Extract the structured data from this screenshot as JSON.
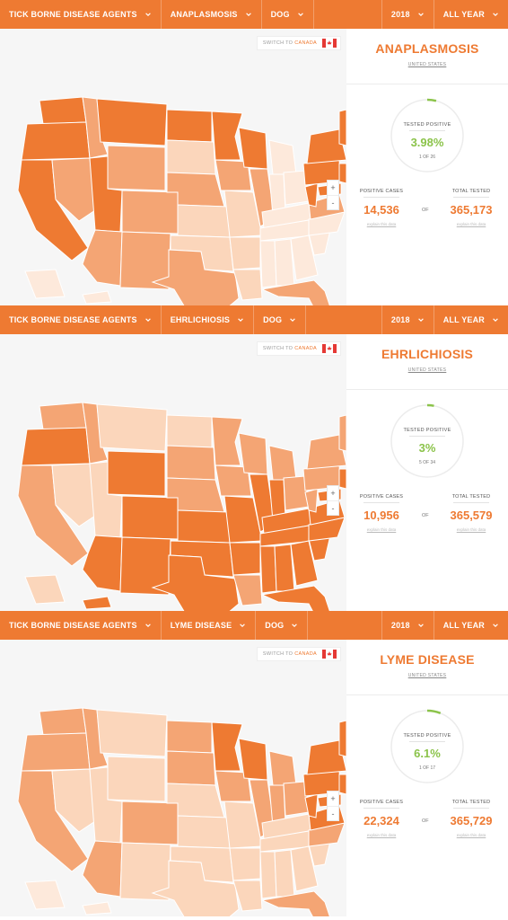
{
  "panels": [
    {
      "nav": {
        "category": "TICK BORNE DISEASE AGENTS",
        "disease": "ANAPLASMOSIS",
        "species": "DOG",
        "year": "2018",
        "period": "ALL YEAR"
      },
      "switch": {
        "prefix": "SWITCH TO",
        "country": "CANADA"
      },
      "zoom": {
        "in": "+",
        "out": "-"
      },
      "stats": {
        "title": "ANAPLASMOSIS",
        "country": "UNITED STATES",
        "tested_positive_label": "TESTED POSITIVE",
        "percent": "3.98%",
        "rank": "1 OF 26",
        "positive_cases_label": "POSITIVE CASES",
        "positive_cases": "14,536",
        "of_label": "OF",
        "total_tested_label": "TOTAL TESTED",
        "total_tested": "365,173",
        "explain": "explain this data",
        "ring_fraction": 0.04
      }
    },
    {
      "nav": {
        "category": "TICK BORNE DISEASE AGENTS",
        "disease": "EHRLICHIOSIS",
        "species": "DOG",
        "year": "2018",
        "period": "ALL YEAR"
      },
      "switch": {
        "prefix": "SWITCH TO",
        "country": "CANADA"
      },
      "zoom": {
        "in": "+",
        "out": "-"
      },
      "stats": {
        "title": "EHRLICHIOSIS",
        "country": "UNITED STATES",
        "tested_positive_label": "TESTED POSITIVE",
        "percent": "3%",
        "rank": "5 OF 34",
        "positive_cases_label": "POSITIVE CASES",
        "positive_cases": "10,956",
        "of_label": "OF",
        "total_tested_label": "TOTAL TESTED",
        "total_tested": "365,579",
        "explain": "explain this data",
        "ring_fraction": 0.03
      }
    },
    {
      "nav": {
        "category": "TICK BORNE DISEASE AGENTS",
        "disease": "LYME DISEASE",
        "species": "DOG",
        "year": "2018",
        "period": "ALL YEAR"
      },
      "switch": {
        "prefix": "SWITCH TO",
        "country": "CANADA"
      },
      "zoom": {
        "in": "+",
        "out": "-"
      },
      "stats": {
        "title": "LYME DISEASE",
        "country": "UNITED STATES",
        "tested_positive_label": "TESTED POSITIVE",
        "percent": "6.1%",
        "rank": "1 OF 17",
        "positive_cases_label": "POSITIVE CASES",
        "positive_cases": "22,324",
        "of_label": "OF",
        "total_tested_label": "TOTAL TESTED",
        "total_tested": "365,729",
        "explain": "explain this data",
        "ring_fraction": 0.06
      }
    }
  ],
  "colors": {
    "accent": "#ee7a32",
    "positive": "#8bc34a",
    "level_high": "#ee7a32",
    "level_mid": "#f4a574",
    "level_low": "#fbd6bb",
    "level_min": "#fde9db"
  },
  "icons": {
    "dropdown": "chevron-down-icon",
    "flag": "canada-flag-icon"
  }
}
